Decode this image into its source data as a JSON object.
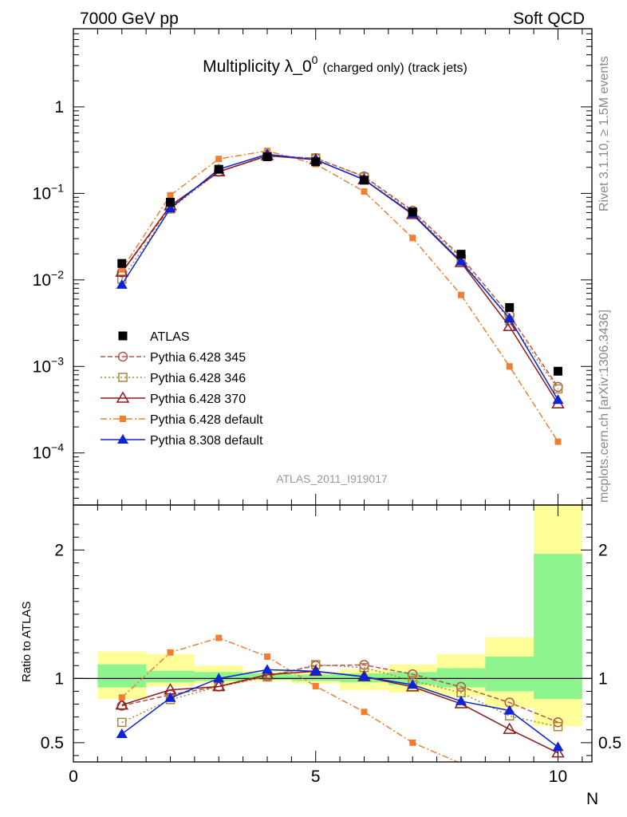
{
  "header": {
    "left": "7000 GeV pp",
    "right": "Soft QCD"
  },
  "side_labels": {
    "rivet": "Rivet 3.1.10, ≥ 1.5M events",
    "mcplots": "mcplots.cern.ch [arXiv:1306.3436]"
  },
  "chart_data": {
    "type": "line",
    "title_main": "Multiplicity λ_0",
    "title_sup": "0",
    "title_sub": "(charged only) (track jets)",
    "analysis_id": "ATLAS_2011_I919017",
    "xlabel": "N",
    "ylabel_ratio": "Ratio to ATLAS",
    "xlim": [
      0,
      10.7
    ],
    "ylim_main": [
      2.5e-05,
      8
    ],
    "yscale_main": "log",
    "ylim_ratio": [
      0.35,
      2.35
    ],
    "x_ticks": [
      "0",
      "5",
      "10"
    ],
    "main_y_ticks": [
      {
        "base": "10",
        "exp": "−4"
      },
      {
        "base": "10",
        "exp": "−3"
      },
      {
        "base": "10",
        "exp": "−2"
      },
      {
        "base": "10",
        "exp": "−1"
      },
      {
        "base": "1",
        "exp": ""
      }
    ],
    "ratio_y_ticks": [
      "0.5",
      "1",
      "2"
    ],
    "x": [
      1,
      2,
      3,
      4,
      5,
      6,
      7,
      8,
      9,
      10
    ],
    "data": {
      "name": "ATLAS",
      "values": [
        0.0155,
        0.079,
        0.19,
        0.265,
        0.232,
        0.142,
        0.061,
        0.0198,
        0.0048,
        0.00088
      ]
    },
    "series": [
      {
        "name": "Pythia 6.428 345",
        "color": "#b5534f",
        "marker": "circle-open",
        "dash": "6,3",
        "values": [
          0.0122,
          0.069,
          0.178,
          0.27,
          0.255,
          0.157,
          0.063,
          0.0185,
          0.0039,
          0.00058
        ]
      },
      {
        "name": "Pythia 6.428 346",
        "color": "#a8863a",
        "marker": "square-open",
        "dash": "2,3",
        "values": [
          0.0102,
          0.066,
          0.178,
          0.268,
          0.257,
          0.154,
          0.06,
          0.0176,
          0.0034,
          0.00055
        ]
      },
      {
        "name": "Pythia 6.428 370",
        "color": "#8b1a1a",
        "marker": "triangle-open",
        "dash": "",
        "values": [
          0.0123,
          0.072,
          0.178,
          0.273,
          0.245,
          0.144,
          0.057,
          0.0159,
          0.0029,
          0.00037
        ]
      },
      {
        "name": "Pythia 6.428 default",
        "color": "#f07f33",
        "marker": "square-filled",
        "dash": "8,3,2,3",
        "values": [
          0.0132,
          0.095,
          0.25,
          0.31,
          0.218,
          0.105,
          0.0305,
          0.0067,
          0.001,
          0.000135
        ]
      },
      {
        "name": "Pythia 8.308 default",
        "color": "#0a24d6",
        "marker": "triangle-filled",
        "dash": "",
        "values": [
          0.0088,
          0.067,
          0.19,
          0.283,
          0.245,
          0.144,
          0.058,
          0.0163,
          0.0036,
          0.00041
        ]
      }
    ],
    "ratio_band_inner": [
      {
        "x0": 0.5,
        "x1": 1.5,
        "lo": 0.93,
        "hi": 1.11
      },
      {
        "x0": 1.5,
        "x1": 2.5,
        "lo": 0.97,
        "hi": 1.06
      },
      {
        "x0": 2.5,
        "x1": 3.5,
        "lo": 0.98,
        "hi": 1.05
      },
      {
        "x0": 3.5,
        "x1": 4.5,
        "lo": 0.99,
        "hi": 1.04
      },
      {
        "x0": 4.5,
        "x1": 5.5,
        "lo": 0.98,
        "hi": 1.03
      },
      {
        "x0": 5.5,
        "x1": 6.5,
        "lo": 0.97,
        "hi": 1.04
      },
      {
        "x0": 6.5,
        "x1": 7.5,
        "lo": 0.95,
        "hi": 1.05
      },
      {
        "x0": 7.5,
        "x1": 8.5,
        "lo": 0.93,
        "hi": 1.08
      },
      {
        "x0": 8.5,
        "x1": 9.5,
        "lo": 0.9,
        "hi": 1.17
      },
      {
        "x0": 9.5,
        "x1": 10.5,
        "lo": 0.84,
        "hi": 1.97
      }
    ],
    "ratio_band_outer": [
      {
        "x0": 0.5,
        "x1": 1.5,
        "lo": 0.84,
        "hi": 1.21
      },
      {
        "x0": 1.5,
        "x1": 2.5,
        "lo": 0.94,
        "hi": 1.19
      },
      {
        "x0": 2.5,
        "x1": 3.5,
        "lo": 0.96,
        "hi": 1.1
      },
      {
        "x0": 3.5,
        "x1": 4.5,
        "lo": 0.98,
        "hi": 1.06
      },
      {
        "x0": 4.5,
        "x1": 5.5,
        "lo": 0.96,
        "hi": 1.05
      },
      {
        "x0": 5.5,
        "x1": 6.5,
        "lo": 0.91,
        "hi": 1.07
      },
      {
        "x0": 6.5,
        "x1": 7.5,
        "lo": 0.89,
        "hi": 1.11
      },
      {
        "x0": 7.5,
        "x1": 8.5,
        "lo": 0.86,
        "hi": 1.19
      },
      {
        "x0": 8.5,
        "x1": 9.5,
        "lo": 0.77,
        "hi": 1.32
      },
      {
        "x0": 9.5,
        "x1": 10.5,
        "lo": 0.63,
        "hi": 2.35
      }
    ],
    "colors": {
      "band_inner": "#8ef58e",
      "band_outer": "#ffff99",
      "data": "#000000"
    },
    "legend_position": "left-middle"
  }
}
